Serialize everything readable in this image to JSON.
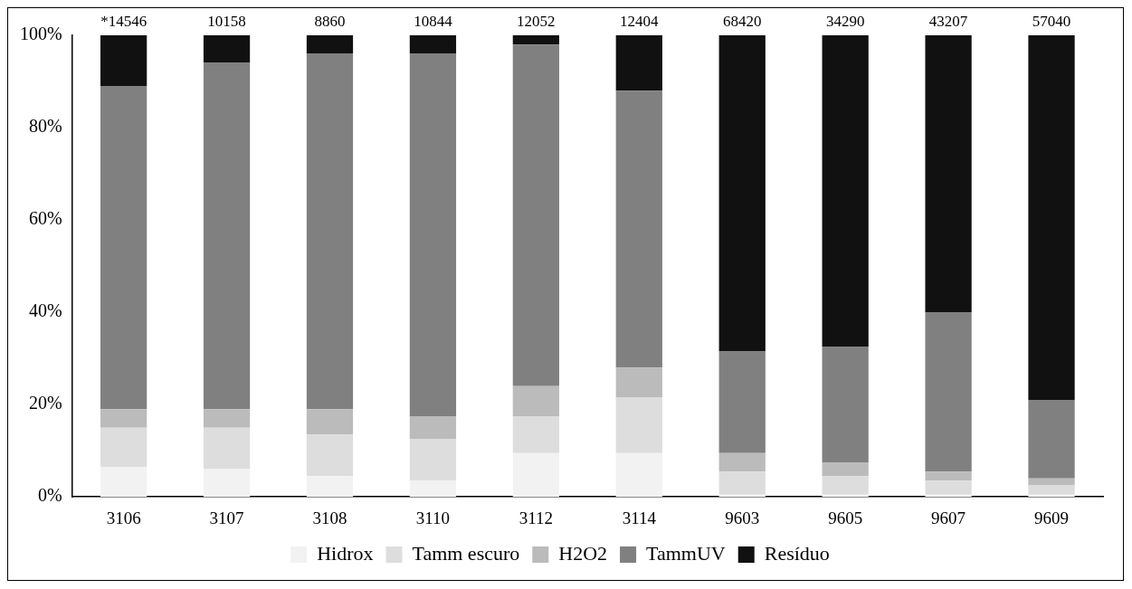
{
  "chart_data": {
    "type": "bar",
    "stacked": true,
    "categories": [
      "3106",
      "3107",
      "3108",
      "3110",
      "3112",
      "3114",
      "9603",
      "9605",
      "9607",
      "9609"
    ],
    "series": [
      {
        "name": "Hidrox",
        "color": "#f2f2f2",
        "values": [
          6.5,
          6,
          4.5,
          3.5,
          9.5,
          9.5,
          0.5,
          0.5,
          0.5,
          0.5
        ]
      },
      {
        "name": "Tamm escuro",
        "color": "#dddddd",
        "values": [
          8.5,
          9,
          9,
          9,
          8,
          12,
          5,
          4,
          3,
          2
        ]
      },
      {
        "name": "H2O2",
        "color": "#bbbbbb",
        "values": [
          4,
          4,
          5.5,
          5,
          6.5,
          6.5,
          4,
          3,
          2,
          1.5
        ]
      },
      {
        "name": "TammUV",
        "color": "#808080",
        "values": [
          70,
          75,
          77,
          78.5,
          74,
          60,
          22,
          25,
          34.5,
          17
        ]
      },
      {
        "name": "Resíduo",
        "color": "#111111",
        "values": [
          11,
          6,
          4,
          4,
          2,
          12,
          68.5,
          67.5,
          60,
          79
        ]
      }
    ],
    "annotations": [
      {
        "text": "*14546",
        "x": "3106",
        "y": 100
      },
      {
        "text": "10158",
        "x": "3107",
        "y": 100
      },
      {
        "text": "8860",
        "x": "3108",
        "y": 100
      },
      {
        "text": "10844",
        "x": "3110",
        "y": 100
      },
      {
        "text": "12052",
        "x": "3112",
        "y": 100
      },
      {
        "text": "12404",
        "x": "3114",
        "y": 100
      },
      {
        "text": "68420",
        "x": "9603",
        "y": 100
      },
      {
        "text": "34290",
        "x": "9605",
        "y": 100
      },
      {
        "text": "43207",
        "x": "9607",
        "y": 100
      },
      {
        "text": "57040",
        "x": "9609",
        "y": 100
      }
    ],
    "ylim": [
      0,
      100
    ],
    "yticks": [
      {
        "value": 0,
        "label": "0%"
      },
      {
        "value": 20,
        "label": "20%"
      },
      {
        "value": 40,
        "label": "40%"
      },
      {
        "value": 60,
        "label": "60%"
      },
      {
        "value": 80,
        "label": "80%"
      },
      {
        "value": 100,
        "label": "100%"
      }
    ],
    "grid": false,
    "legend": "bottom"
  }
}
